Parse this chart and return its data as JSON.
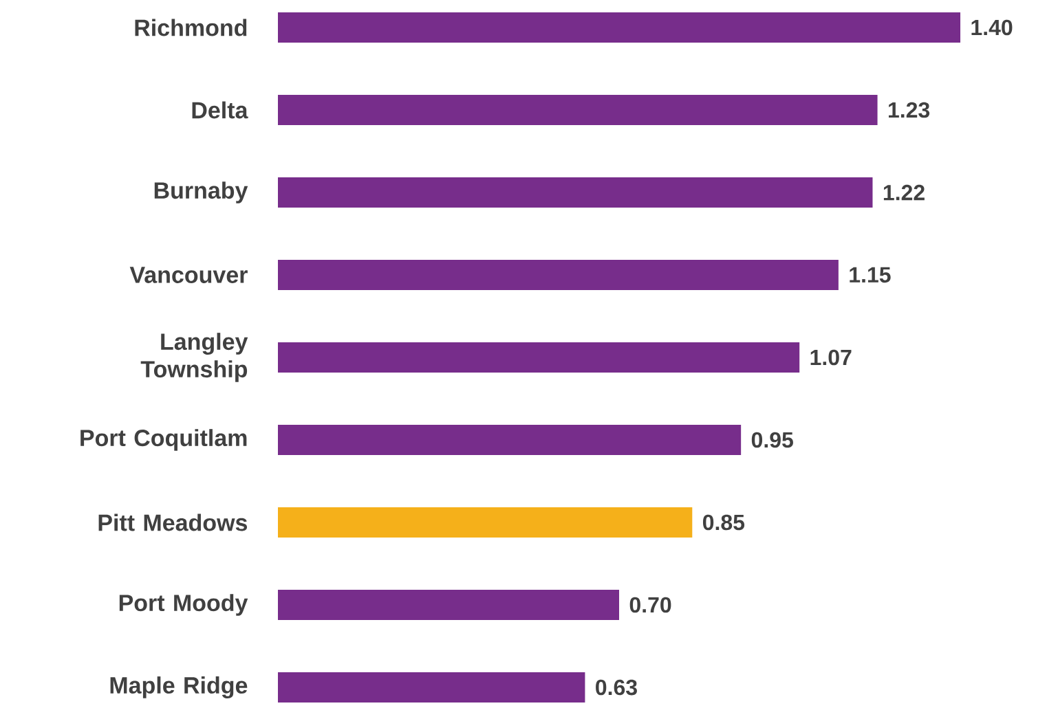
{
  "chart_data": {
    "type": "bar",
    "orientation": "horizontal",
    "categories": [
      "Richmond",
      "Delta",
      "Burnaby",
      "Vancouver",
      "Langley Township",
      "Port Coquitlam",
      "Pitt Meadows",
      "Port Moody",
      "Maple Ridge"
    ],
    "values": [
      1.4,
      1.23,
      1.22,
      1.15,
      1.07,
      0.95,
      0.85,
      0.7,
      0.63
    ],
    "colors": [
      "#772d8b",
      "#772d8b",
      "#772d8b",
      "#772d8b",
      "#772d8b",
      "#772d8b",
      "#f5b01a",
      "#772d8b",
      "#772d8b"
    ],
    "value_labels": [
      "1.40",
      "1.23",
      "1.22",
      "1.15",
      "1.07",
      "0.95",
      "0.85",
      "0.70",
      "0.63"
    ]
  }
}
